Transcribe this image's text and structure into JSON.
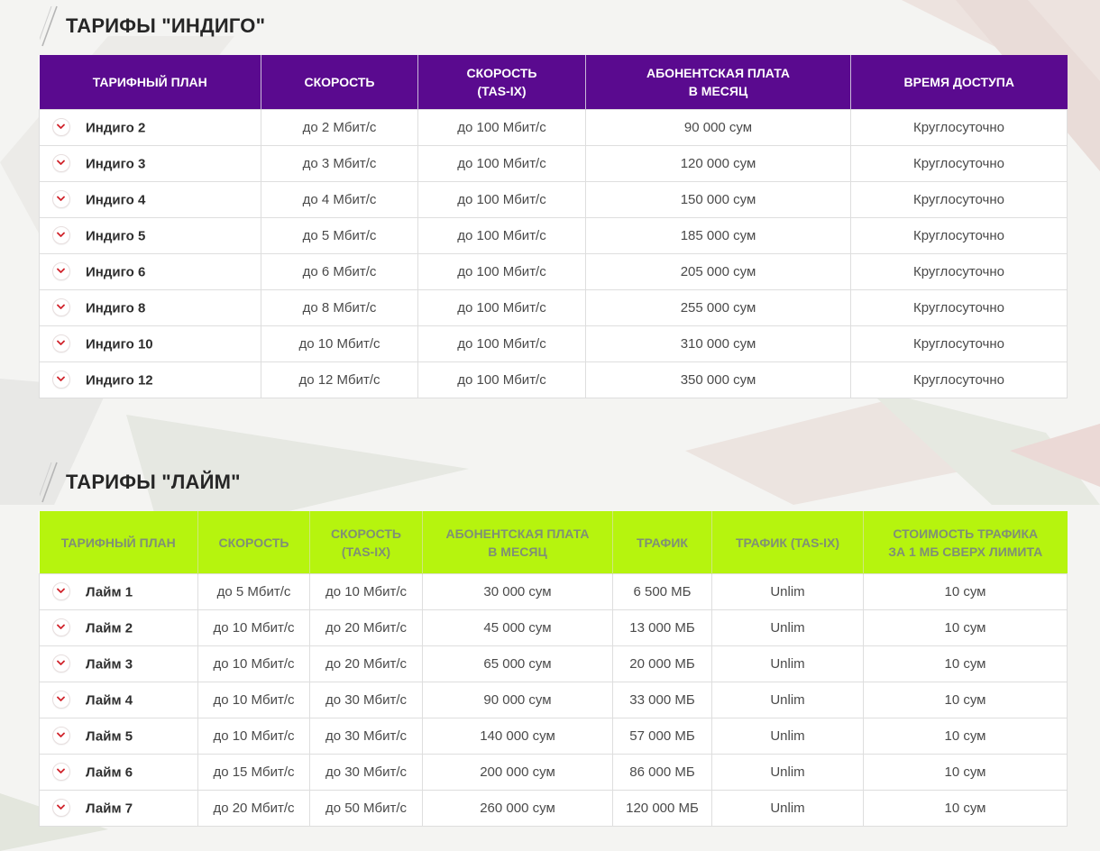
{
  "colors": {
    "indigo_header": "#5a0a8f",
    "lime_header": "#b6f40e",
    "chevron_icon": "#d0232b"
  },
  "indigo": {
    "title": "ТАРИФЫ \"ИНДИГО\"",
    "headers": [
      "ТАРИФНЫЙ ПЛАН",
      "СКОРОСТЬ",
      "СКОРОСТЬ\n(TAS-IX)",
      "АБОНЕНТСКАЯ ПЛАТА\nВ МЕСЯЦ",
      "ВРЕМЯ ДОСТУПА"
    ],
    "rows": [
      [
        "Индиго 2",
        "до 2 Мбит/с",
        "до 100 Мбит/с",
        "90 000 сум",
        "Круглосуточно"
      ],
      [
        "Индиго 3",
        "до 3 Мбит/с",
        "до 100 Мбит/с",
        "120 000 сум",
        "Круглосуточно"
      ],
      [
        "Индиго 4",
        "до 4 Мбит/с",
        "до 100 Мбит/с",
        "150 000 сум",
        "Круглосуточно"
      ],
      [
        "Индиго 5",
        "до 5 Мбит/с",
        "до 100 Мбит/с",
        "185 000 сум",
        "Круглосуточно"
      ],
      [
        "Индиго 6",
        "до 6 Мбит/с",
        "до 100 Мбит/с",
        "205 000 сум",
        "Круглосуточно"
      ],
      [
        "Индиго 8",
        "до 8 Мбит/с",
        "до 100 Мбит/с",
        "255 000 сум",
        "Круглосуточно"
      ],
      [
        "Индиго 10",
        "до 10 Мбит/с",
        "до 100 Мбит/с",
        "310 000 сум",
        "Круглосуточно"
      ],
      [
        "Индиго 12",
        "до 12 Мбит/с",
        "до 100 Мбит/с",
        "350 000 сум",
        "Круглосуточно"
      ]
    ]
  },
  "lime": {
    "title": "ТАРИФЫ \"ЛАЙМ\"",
    "headers": [
      "ТАРИФНЫЙ ПЛАН",
      "СКОРОСТЬ",
      "СКОРОСТЬ\n(TAS-IX)",
      "АБОНЕНТСКАЯ ПЛАТА\nВ МЕСЯЦ",
      "ТРАФИК",
      "ТРАФИК (TAS-IX)",
      "СТОИМОСТЬ ТРАФИКА\nЗА 1 МБ СВЕРХ ЛИМИТА"
    ],
    "rows": [
      [
        "Лайм 1",
        "до 5 Мбит/с",
        "до 10 Мбит/с",
        "30 000 сум",
        "6 500 МБ",
        "Unlim",
        "10 сум"
      ],
      [
        "Лайм 2",
        "до 10 Мбит/с",
        "до 20 Мбит/с",
        "45 000 сум",
        "13 000 МБ",
        "Unlim",
        "10 сум"
      ],
      [
        "Лайм 3",
        "до 10 Мбит/с",
        "до 20 Мбит/с",
        "65 000 сум",
        "20 000 МБ",
        "Unlim",
        "10 сум"
      ],
      [
        "Лайм 4",
        "до 10 Мбит/с",
        "до 30 Мбит/с",
        "90 000 сум",
        "33 000 МБ",
        "Unlim",
        "10 сум"
      ],
      [
        "Лайм 5",
        "до 10 Мбит/с",
        "до 30 Мбит/с",
        "140 000 сум",
        "57 000 МБ",
        "Unlim",
        "10 сум"
      ],
      [
        "Лайм 6",
        "до 15 Мбит/с",
        "до 30 Мбит/с",
        "200 000 сум",
        "86 000 МБ",
        "Unlim",
        "10 сум"
      ],
      [
        "Лайм 7",
        "до 20 Мбит/с",
        "до 50 Мбит/с",
        "260 000 сум",
        "120 000 МБ",
        "Unlim",
        "10 сум"
      ]
    ]
  }
}
